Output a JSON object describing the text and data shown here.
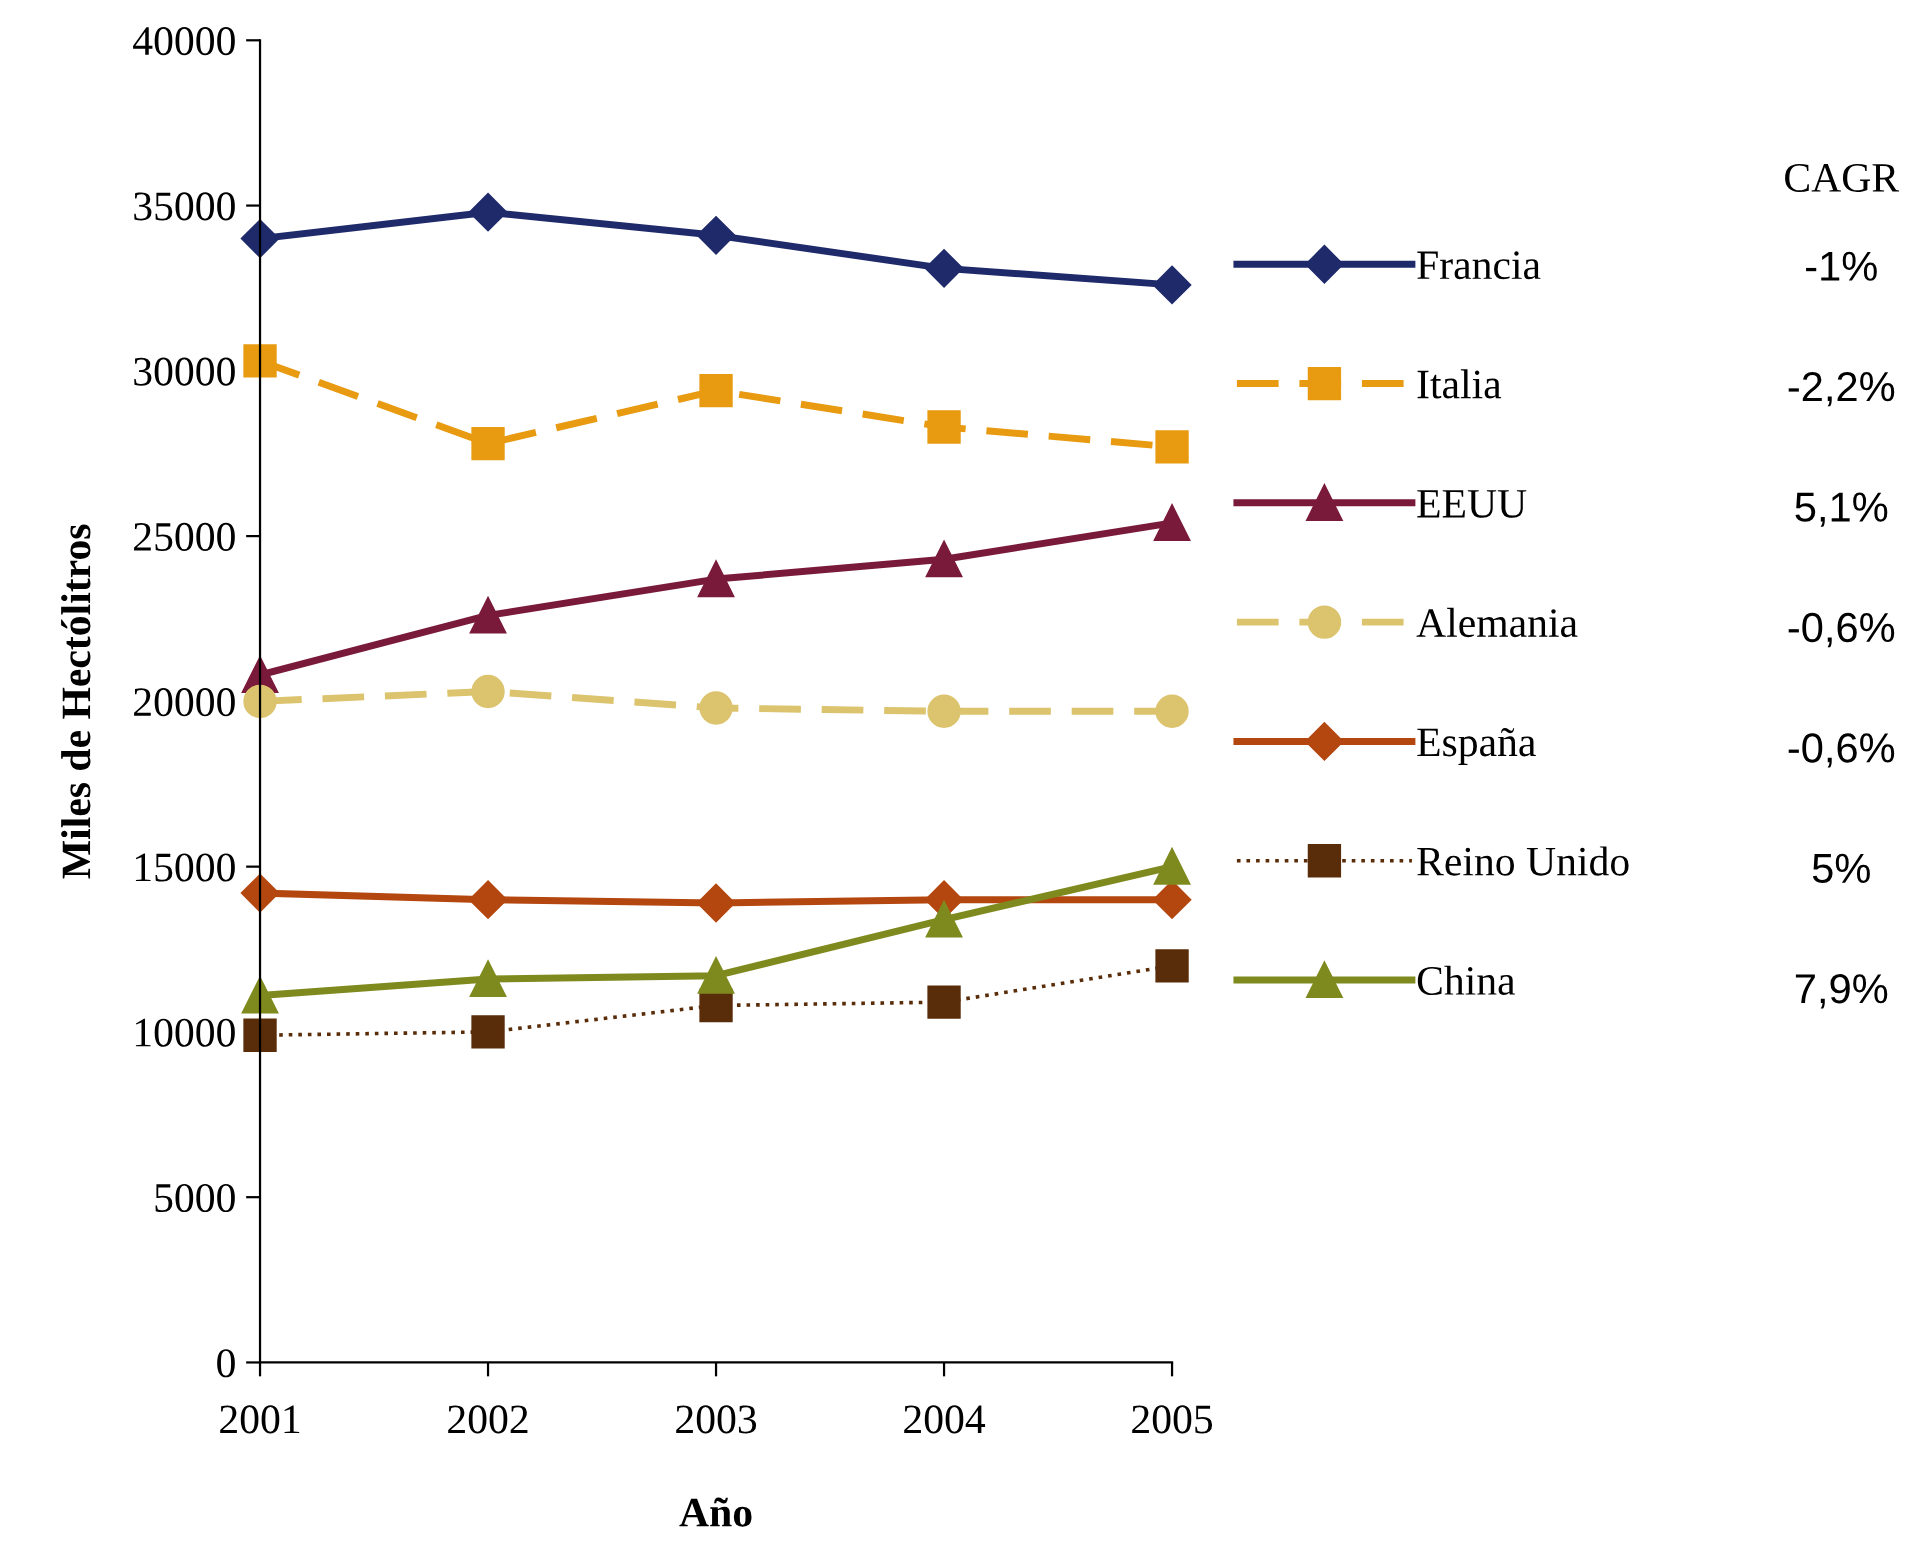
{
  "chart_data": {
    "type": "line",
    "xlabel": "Año",
    "ylabel": "Miles de Hectólitros",
    "x": [
      2001,
      2002,
      2003,
      2004,
      2005
    ],
    "xlim": [
      2001,
      2005
    ],
    "xticks": [
      2001,
      2002,
      2003,
      2004,
      2005
    ],
    "ylim": [
      0,
      40000
    ],
    "yticks": [
      0,
      5000,
      10000,
      15000,
      20000,
      25000,
      30000,
      35000,
      40000
    ],
    "grid": false,
    "legend": "right",
    "legend_title": "CAGR",
    "series": [
      {
        "name": "Francia",
        "color": "#1f2a6b",
        "marker": "diamond",
        "line_style": "solid",
        "values": [
          34000,
          34800,
          34100,
          33100,
          32600
        ]
      },
      {
        "name": "Italia",
        "color": "#e89a10",
        "marker": "square",
        "line_style": "dashed",
        "values": [
          30300,
          27800,
          29400,
          28300,
          27700
        ]
      },
      {
        "name": "EEUU",
        "color": "#7a1a3a",
        "marker": "triangle",
        "line_style": "solid",
        "values": [
          20800,
          22600,
          23700,
          24300,
          25400
        ]
      },
      {
        "name": "Alemania",
        "color": "#dcc36e",
        "marker": "circle",
        "line_style": "dashed",
        "values": [
          20000,
          20300,
          19800,
          19700,
          19700
        ]
      },
      {
        "name": "España",
        "color": "#b4470f",
        "marker": "diamond",
        "line_style": "solid",
        "values": [
          14200,
          14000,
          13900,
          14000,
          14000
        ]
      },
      {
        "name": "Reino Unido",
        "color": "#5a2d0a",
        "marker": "square",
        "line_style": "dotted",
        "values": [
          9900,
          10000,
          10800,
          10900,
          12000
        ]
      },
      {
        "name": "China",
        "color": "#7f8a1e",
        "marker": "triangle",
        "line_style": "solid",
        "values": [
          11100,
          11600,
          11700,
          13400,
          15000
        ]
      }
    ],
    "annotations": [
      "-1%",
      "-2,2%",
      "5,1%",
      "-0,6%",
      "-0,6%",
      "5%",
      "7,9%"
    ]
  }
}
